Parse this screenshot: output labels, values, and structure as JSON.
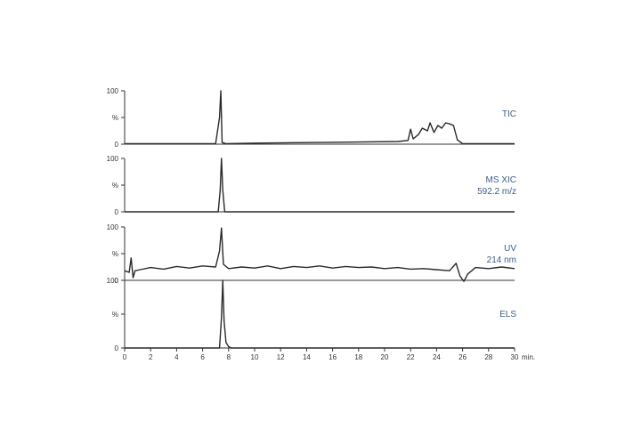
{
  "chart_data": {
    "type": "line",
    "x_unit": "min.",
    "xlim": [
      0,
      30
    ],
    "x_ticks": [
      "0",
      "2",
      "4",
      "6",
      "8",
      "10",
      "12",
      "14",
      "16",
      "18",
      "20",
      "22",
      "24",
      "26",
      "28",
      "30"
    ],
    "y_ticks": [
      "0",
      "%",
      "100"
    ],
    "label_color": "#3b5f8a",
    "panels": [
      {
        "label": "TIC",
        "ylim": [
          0,
          100
        ],
        "series": {
          "x": [
            0,
            7.0,
            7.3,
            7.4,
            7.5,
            7.8,
            10,
            14,
            18,
            21,
            21.8,
            22.0,
            22.2,
            22.6,
            22.9,
            23.3,
            23.5,
            23.8,
            24.1,
            24.4,
            24.7,
            25.0,
            25.3,
            25.6,
            26.0,
            30
          ],
          "y": [
            1,
            1,
            50,
            100,
            3,
            1,
            2,
            3,
            4,
            5,
            7,
            28,
            10,
            18,
            30,
            25,
            40,
            22,
            35,
            30,
            40,
            38,
            35,
            8,
            1,
            1
          ]
        }
      },
      {
        "label": "MS XIC",
        "sublabel": "592.2 m/z",
        "ylim": [
          0,
          100
        ],
        "series": {
          "x": [
            0,
            7.2,
            7.35,
            7.45,
            7.55,
            7.7,
            30
          ],
          "y": [
            0,
            0,
            40,
            100,
            40,
            0,
            0
          ]
        }
      },
      {
        "label": "UV",
        "sublabel": "214 nm",
        "ylim": [
          0,
          100
        ],
        "series": {
          "x": [
            0,
            0.35,
            0.5,
            0.65,
            0.8,
            1.2,
            2,
            3,
            4,
            5,
            6,
            7.0,
            7.3,
            7.45,
            7.6,
            8,
            9,
            10,
            11,
            12,
            13,
            14,
            15,
            16,
            17,
            18,
            19,
            20,
            21,
            22,
            23,
            24,
            25,
            25.5,
            25.8,
            26.1,
            26.4,
            27,
            28,
            29,
            30
          ],
          "y": [
            18,
            15,
            42,
            5,
            18,
            20,
            24,
            21,
            26,
            23,
            27,
            25,
            55,
            98,
            30,
            22,
            25,
            23,
            27,
            22,
            26,
            24,
            27,
            23,
            26,
            24,
            25,
            22,
            24,
            21,
            22,
            20,
            18,
            32,
            8,
            -2,
            12,
            24,
            22,
            25,
            22
          ]
        }
      },
      {
        "label": "ELS",
        "ylim": [
          0,
          100
        ],
        "series": {
          "x": [
            0,
            7.3,
            7.45,
            7.55,
            7.65,
            7.8,
            8.0,
            8.2,
            30
          ],
          "y": [
            0,
            0,
            45,
            100,
            40,
            8,
            2,
            0,
            0
          ]
        }
      }
    ]
  }
}
